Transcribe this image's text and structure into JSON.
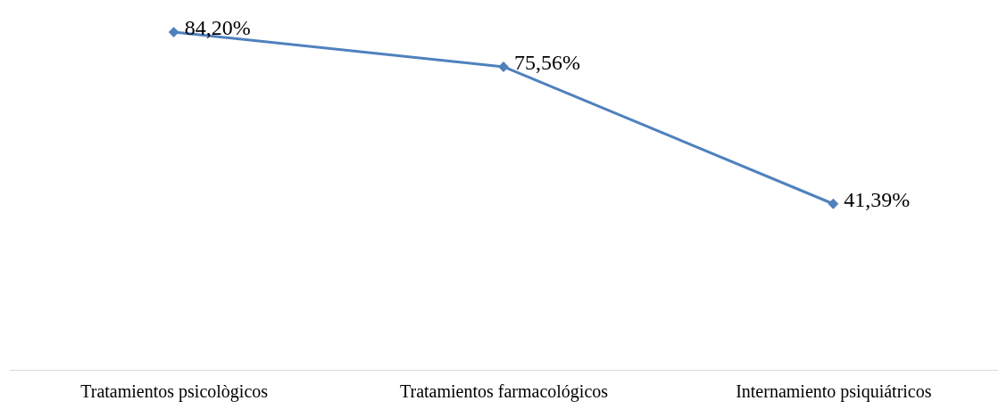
{
  "chart_data": {
    "type": "line",
    "categories": [
      "Tratamientos psicològicos",
      "Tratamientos farmacológicos",
      "Internamiento psiquiátricos"
    ],
    "series": [
      {
        "color": "#4f81bd",
        "values": [
          84.2,
          75.56,
          41.39
        ],
        "value_labels": [
          "84,20%",
          "75,56%",
          "41,39%"
        ]
      }
    ],
    "marker": "diamond",
    "line_style": "solid",
    "grid": false,
    "tick_labels": "x"
  }
}
